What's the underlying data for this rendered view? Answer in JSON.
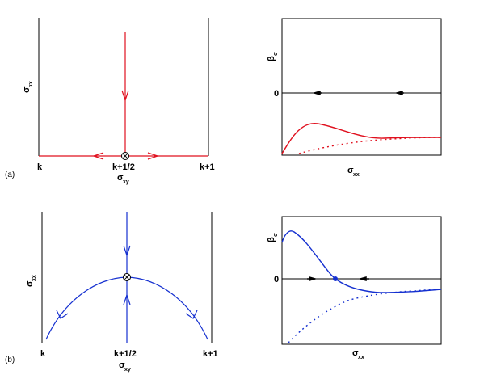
{
  "colors": {
    "red": "#e0101e",
    "blue": "#1530d0",
    "black": "#000000"
  },
  "panel_a": {
    "tag": "(a)",
    "x_label_main": "σ",
    "x_label_sub": "xy",
    "y_label_main": "σ",
    "y_label_sub": "xx",
    "tick_left": "k",
    "tick_mid": "k+1/2",
    "tick_right": "k+1",
    "fixed_point_icon": "circled-times"
  },
  "panel_a_beta": {
    "y_label_main": "β",
    "y_label_sub": "σ",
    "zero_label": "0",
    "x_label_main": "σ",
    "x_label_sub": "xx",
    "solid_curve_color": "red",
    "dashed_curve_color": "red",
    "flow_arrows": "left"
  },
  "panel_b": {
    "tag": "(b)",
    "x_label_main": "σ",
    "x_label_sub": "xy",
    "y_label_main": "σ",
    "y_label_sub": "xx",
    "tick_left": "k",
    "tick_mid": "k+1/2",
    "tick_right": "k+1",
    "fixed_point_icon": "circled-times"
  },
  "panel_b_beta": {
    "y_label_main": "β",
    "y_label_sub": "σ",
    "zero_label": "0",
    "x_label_main": "σ",
    "x_label_sub": "xx",
    "solid_curve_color": "blue",
    "dashed_curve_color": "blue",
    "flow_arrows": "toward-fixed-point"
  }
}
